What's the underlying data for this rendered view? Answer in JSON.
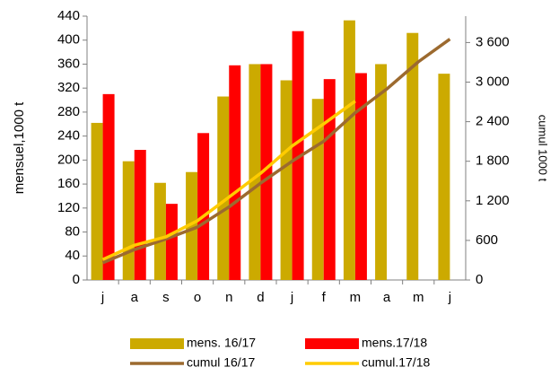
{
  "chart_data": {
    "type": "bar_line",
    "categories": [
      "j",
      "a",
      "s",
      "o",
      "n",
      "d",
      "j",
      "f",
      "m",
      "a",
      "m",
      "j"
    ],
    "ylabel": "mensuel,1000 t",
    "y2label": "cumul 1000 t",
    "ylim": [
      0,
      440
    ],
    "yticks": [
      0,
      40,
      80,
      120,
      160,
      200,
      240,
      280,
      320,
      360,
      400,
      440
    ],
    "y2lim": [
      0,
      4000
    ],
    "y2ticks": [
      0,
      600,
      {
        "value": 1200,
        "label": "1 200"
      },
      {
        "value": 1800,
        "label": "1 800"
      },
      {
        "value": 2400,
        "label": "2 400"
      },
      {
        "value": 3000,
        "label": "3 000"
      },
      {
        "value": 3600,
        "label": "3 600"
      }
    ],
    "series": [
      {
        "name": "mens. 16/17",
        "kind": "bar",
        "color": "#CCAA00",
        "values": [
          262,
          198,
          162,
          180,
          306,
          360,
          333,
          302,
          433,
          360,
          412,
          344
        ]
      },
      {
        "name": "mens.17/18",
        "kind": "bar",
        "color": "#FF0000",
        "values": [
          310,
          217,
          127,
          245,
          358,
          360,
          415,
          335,
          345,
          null,
          null,
          null
        ]
      },
      {
        "name": "cumul 16/17",
        "kind": "line",
        "axis": "y2",
        "color": "#9C6A2F",
        "values": [
          262,
          460,
          622,
          802,
          1108,
          1468,
          1801,
          2103,
          2536,
          2896,
          3308,
          3652
        ]
      },
      {
        "name": "cumul.17/18",
        "kind": "line",
        "axis": "y2",
        "color": "#FFCC00",
        "values": [
          310,
          527,
          654,
          899,
          1257,
          1617,
          2032,
          2367,
          2712,
          null,
          null,
          null
        ]
      }
    ]
  }
}
